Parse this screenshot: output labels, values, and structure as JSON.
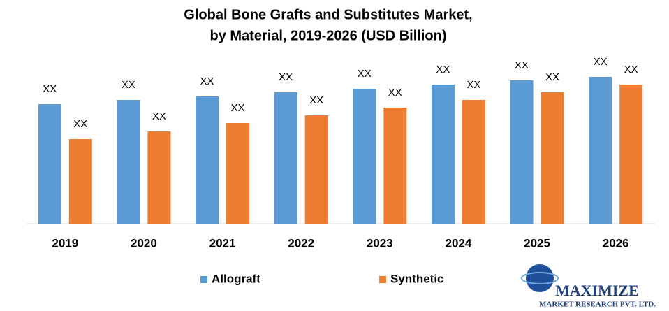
{
  "chart_data": {
    "type": "bar",
    "title": "Global Bone Grafts and Substitutes Market,",
    "subtitle": "by Material, 2019-2026 (USD Billion)",
    "categories": [
      "2019",
      "2020",
      "2021",
      "2022",
      "2023",
      "2024",
      "2025",
      "2026"
    ],
    "series": [
      {
        "name": "Allograft",
        "color": "#5b9bd5",
        "values": [
          171,
          177,
          182,
          188,
          193,
          199,
          205,
          210
        ],
        "value_labels": [
          "XX",
          "XX",
          "XX",
          "XX",
          "XX",
          "XX",
          "XX",
          "XX"
        ]
      },
      {
        "name": "Synthetic",
        "color": "#ed7d31",
        "values": [
          121,
          132,
          144,
          155,
          166,
          177,
          188,
          199
        ],
        "value_labels": [
          "XX",
          "XX",
          "XX",
          "XX",
          "XX",
          "XX",
          "XX",
          "XX"
        ]
      }
    ],
    "ylim": [
      0,
      230
    ],
    "grid": false,
    "legend": "bottom"
  },
  "logo": {
    "name": "MAXIMIZE",
    "tagline": "MARKET RESEARCH PVT. LTD."
  }
}
